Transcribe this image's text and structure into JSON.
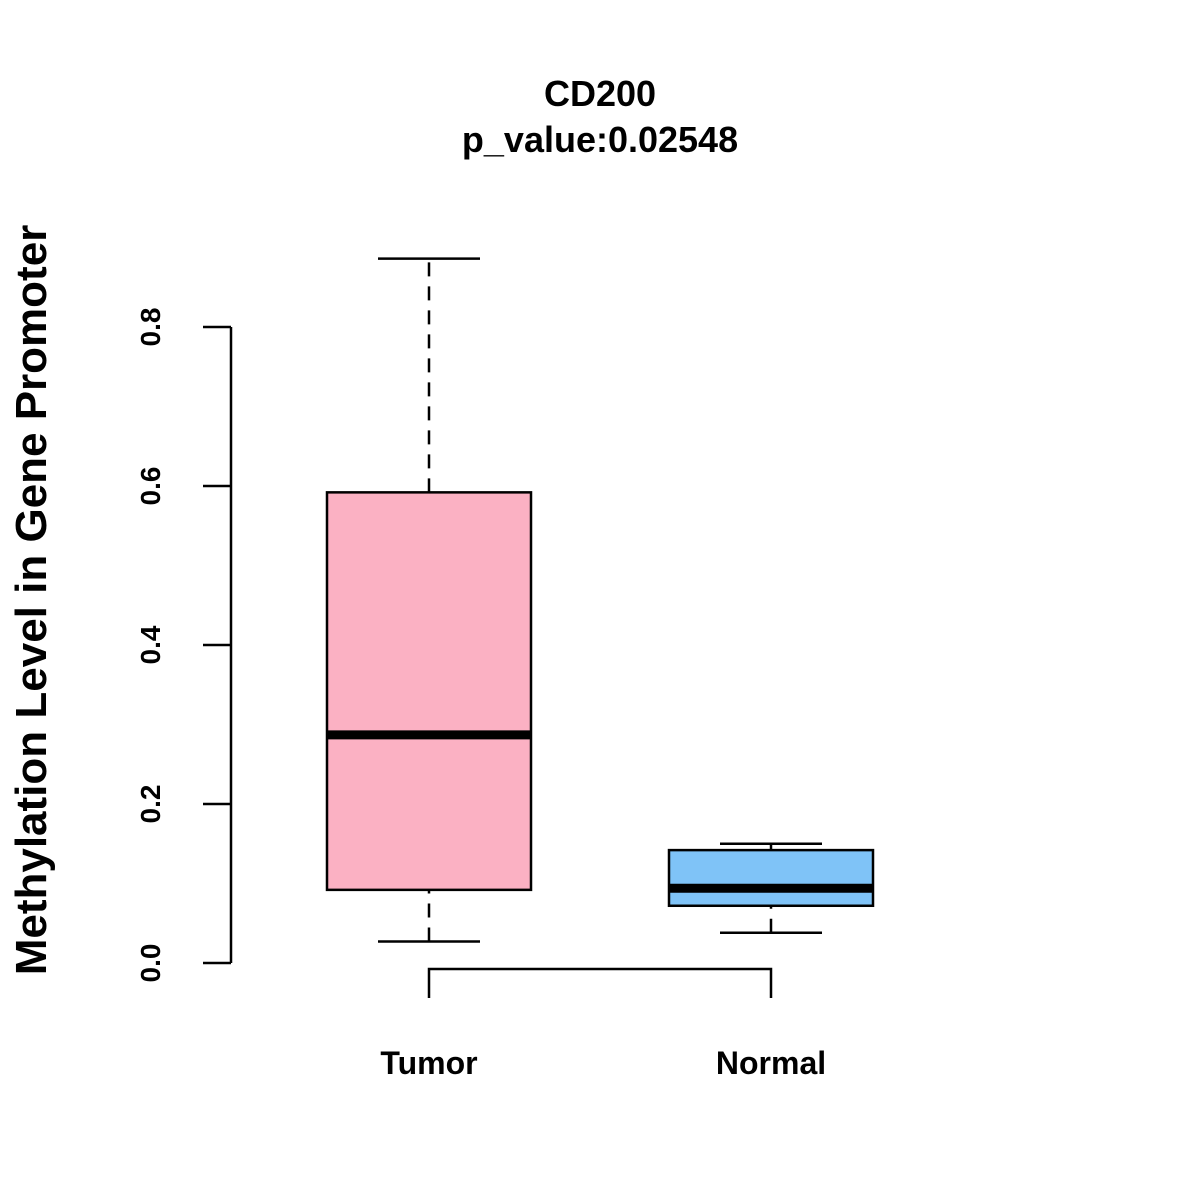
{
  "chart_data": {
    "type": "boxplot",
    "title": "CD200",
    "subtitle": "p_value:0.02548",
    "xlabel": "",
    "ylabel": "Methylation Level in Gene Promoter",
    "ylim": [
      0,
      0.8
    ],
    "yticks": [
      0.0,
      0.2,
      0.4,
      0.6,
      0.8
    ],
    "ytick_labels": [
      "0.0",
      "0.2",
      "0.4",
      "0.6",
      "0.8"
    ],
    "grid": false,
    "categories": [
      "Tumor",
      "Normal"
    ],
    "series": [
      {
        "name": "Tumor",
        "whisker_low": 0.027,
        "q1": 0.092,
        "median": 0.287,
        "q3": 0.592,
        "whisker_high": 0.886,
        "color": "#FBB1C3"
      },
      {
        "name": "Normal",
        "whisker_low": 0.038,
        "q1": 0.072,
        "median": 0.094,
        "q3": 0.142,
        "whisker_high": 0.15,
        "color": "#7FC3F7"
      }
    ],
    "bracket": {
      "from": "Tumor",
      "to": "Normal"
    }
  }
}
